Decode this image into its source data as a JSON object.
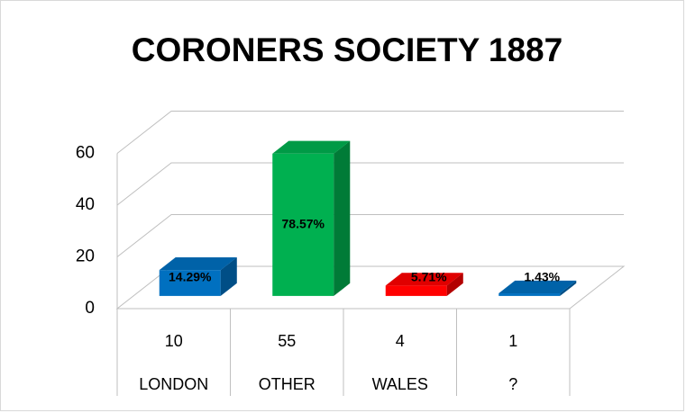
{
  "chart_data": {
    "type": "bar3d",
    "title": "CORONERS SOCIETY 1887",
    "categories": [
      "LONDON",
      "OTHER",
      "WALES",
      "?"
    ],
    "values": [
      10,
      55,
      4,
      1
    ],
    "data_labels": [
      "14.29%",
      "78.57%",
      "5.71%",
      "1.43%"
    ],
    "colors": [
      "#0070c0",
      "#00b050",
      "#ff0000",
      "#0070c0"
    ],
    "ylim": [
      0,
      60
    ],
    "yticks": [
      0,
      20,
      40,
      60
    ],
    "grid": true
  }
}
